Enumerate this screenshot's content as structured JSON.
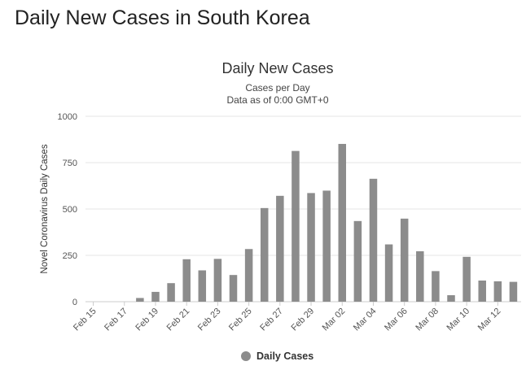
{
  "page": {
    "heading": "Daily New Cases in South Korea"
  },
  "chart_data": {
    "type": "bar",
    "title": "Daily New Cases",
    "subtitle": [
      "Cases per Day",
      "Data as of 0:00 GMT+0"
    ],
    "ylabel": "Novel Coronavirus Daily Cases",
    "xlabel": "",
    "ylim": [
      0,
      1000
    ],
    "yticks": [
      0,
      250,
      500,
      750,
      1000
    ],
    "grid": true,
    "legend_position": "bottom-center",
    "colors": {
      "bar": "#8c8c8c",
      "grid": "#e6e6e6"
    },
    "categories": [
      "Feb 15",
      "Feb 16",
      "Feb 17",
      "Feb 18",
      "Feb 19",
      "Feb 20",
      "Feb 21",
      "Feb 22",
      "Feb 23",
      "Feb 24",
      "Feb 25",
      "Feb 26",
      "Feb 27",
      "Feb 28",
      "Feb 29",
      "Mar 01",
      "Mar 02",
      "Mar 03",
      "Mar 04",
      "Mar 05",
      "Mar 06",
      "Mar 07",
      "Mar 08",
      "Mar 09",
      "Mar 10",
      "Mar 11",
      "Mar 12",
      "Mar 13"
    ],
    "xtick_labels": [
      "Feb 15",
      "Feb 17",
      "Feb 19",
      "Feb 21",
      "Feb 23",
      "Feb 25",
      "Feb 27",
      "Feb 29",
      "Mar 02",
      "Mar 04",
      "Mar 06",
      "Mar 08",
      "Mar 10",
      "Mar 12"
    ],
    "series": [
      {
        "name": "Daily Cases",
        "values": [
          0,
          0,
          0,
          20,
          53,
          100,
          229,
          169,
          231,
          144,
          284,
          505,
          571,
          813,
          586,
          599,
          851,
          435,
          663,
          309,
          448,
          272,
          165,
          35,
          242,
          114,
          110,
          107
        ]
      }
    ]
  }
}
